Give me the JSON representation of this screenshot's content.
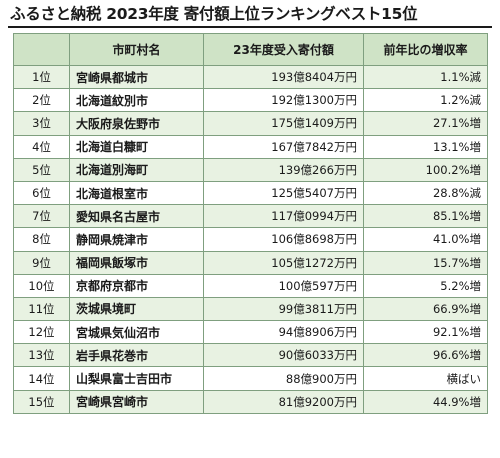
{
  "title": "ふるさと納税 2023年度 寄付額上位ランキングベスト15位",
  "table": {
    "headers": {
      "rank": "",
      "municipality": "市町村名",
      "amount": "23年度受入寄付額",
      "change": "前年比の増収率"
    },
    "rows": [
      {
        "rank": "1位",
        "municipality": "宮崎県都城市",
        "amount": "193億8404万円",
        "change": "1.1%減"
      },
      {
        "rank": "2位",
        "municipality": "北海道紋別市",
        "amount": "192億1300万円",
        "change": "1.2%減"
      },
      {
        "rank": "3位",
        "municipality": "大阪府泉佐野市",
        "amount": "175億1409万円",
        "change": "27.1%増"
      },
      {
        "rank": "4位",
        "municipality": "北海道白糠町",
        "amount": "167億7842万円",
        "change": "13.1%増"
      },
      {
        "rank": "5位",
        "municipality": "北海道別海町",
        "amount": "139億266万円",
        "change": "100.2%増"
      },
      {
        "rank": "6位",
        "municipality": "北海道根室市",
        "amount": "125億5407万円",
        "change": "28.8%減"
      },
      {
        "rank": "7位",
        "municipality": "愛知県名古屋市",
        "amount": "117億0994万円",
        "change": "85.1%増"
      },
      {
        "rank": "8位",
        "municipality": "静岡県焼津市",
        "amount": "106億8698万円",
        "change": "41.0%増"
      },
      {
        "rank": "9位",
        "municipality": "福岡県飯塚市",
        "amount": "105億1272万円",
        "change": "15.7%増"
      },
      {
        "rank": "10位",
        "municipality": "京都府京都市",
        "amount": "100億597万円",
        "change": "5.2%増"
      },
      {
        "rank": "11位",
        "municipality": "茨城県境町",
        "amount": "99億3811万円",
        "change": "66.9%増"
      },
      {
        "rank": "12位",
        "municipality": "宮城県気仙沼市",
        "amount": "94億8906万円",
        "change": "92.1%増"
      },
      {
        "rank": "13位",
        "municipality": "岩手県花巻市",
        "amount": "90億6033万円",
        "change": "96.6%増"
      },
      {
        "rank": "14位",
        "municipality": "山梨県富士吉田市",
        "amount": "88億900万円",
        "change": "横ばい"
      },
      {
        "rank": "15位",
        "municipality": "宮崎県宮崎市",
        "amount": "81億9200万円",
        "change": "44.9%増"
      }
    ]
  }
}
